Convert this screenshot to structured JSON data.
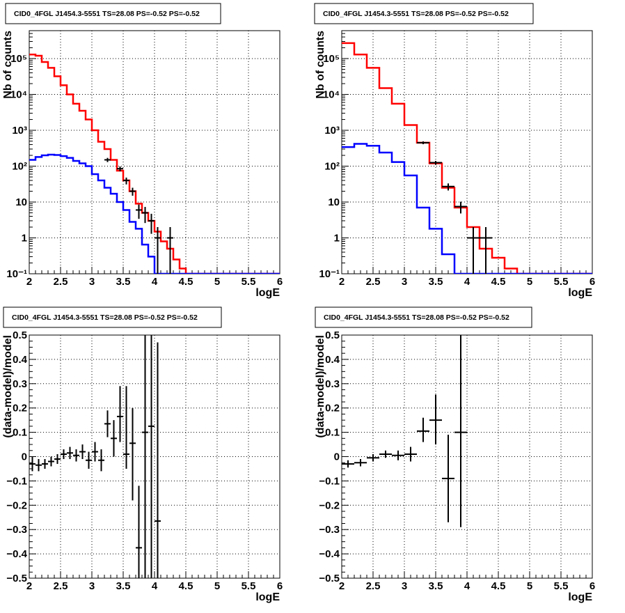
{
  "colors": {
    "model_total": "#ff0000",
    "model_source": "#0000ff",
    "data": "#000000",
    "grid": "#000000",
    "background": "#ffffff"
  },
  "chart_data": [
    {
      "type": "line",
      "title": "CID0_4FGL J1454.3-5551 TS=28.08 PS=-0.52 PS=-0.52",
      "xlabel": "logE",
      "ylabel": "Nb of counts",
      "xlim": [
        2,
        6
      ],
      "ylim": [
        0.1,
        600000
      ],
      "y_scale": "log",
      "grid": true,
      "x_ticks": [
        2,
        2.5,
        3,
        3.5,
        4,
        4.5,
        5,
        5.5,
        6
      ],
      "x_tick_labels": [
        "2",
        "2.5",
        "3",
        "3.5",
        "4",
        "4.5",
        "5",
        "5.5",
        "6"
      ],
      "y_ticks": [
        0.1,
        1,
        10,
        100,
        1000,
        10000,
        100000
      ],
      "y_tick_labels": [
        "10⁻¹",
        "1",
        "10",
        "10²",
        "10³",
        "10⁴",
        "10⁵"
      ],
      "bin_edges": [
        2,
        2.1,
        2.2,
        2.3,
        2.4,
        2.5,
        2.6,
        2.7,
        2.8,
        2.9,
        3,
        3.1,
        3.2,
        3.3,
        3.4,
        3.5,
        3.6,
        3.7,
        3.8,
        3.9,
        4,
        4.1,
        4.2,
        4.3,
        4.4,
        4.5,
        4.6,
        4.7,
        4.8,
        4.9,
        5,
        5.1,
        5.2,
        5.3,
        5.4,
        5.5,
        5.6,
        5.7,
        5.8,
        5.9,
        6
      ],
      "series": [
        {
          "values": [
            130000,
            120000,
            80000,
            55000,
            32000,
            18000,
            10000,
            5500,
            3500,
            2000,
            1000,
            480,
            300,
            150,
            75,
            40,
            20,
            9,
            5,
            3,
            1.5,
            0.8,
            0.5,
            0.25,
            0.14,
            0.1,
            0.1,
            0.1,
            0.1,
            0.1,
            0.1,
            0.1,
            0.1,
            0.1,
            0.1,
            0.1,
            0.1,
            0.1,
            0.1,
            0.1
          ]
        },
        {
          "values": [
            150,
            180,
            200,
            210,
            205,
            190,
            170,
            140,
            120,
            100,
            60,
            40,
            25,
            17,
            10,
            6,
            2.8,
            1.8,
            0.65,
            0.3,
            0.1,
            0.1,
            0.1,
            0.1,
            0.1,
            0.1,
            0.1,
            0.1,
            0.1,
            0.1,
            0.1,
            0.1,
            0.1,
            0.1,
            0.1,
            0.1,
            0.1,
            0.1,
            0.1,
            0.1
          ]
        },
        {
          "points": [
            {
              "x": 3.25,
              "y": 150,
              "xerr": 0.05,
              "ylo": 130,
              "yhi": 170
            },
            {
              "x": 3.45,
              "y": 85,
              "xerr": 0.05,
              "ylo": 72,
              "yhi": 98
            },
            {
              "x": 3.55,
              "y": 40,
              "xerr": 0.05,
              "ylo": 31,
              "yhi": 48
            },
            {
              "x": 3.65,
              "y": 20,
              "xerr": 0.05,
              "ylo": 15,
              "yhi": 25
            },
            {
              "x": 3.75,
              "y": 6,
              "xerr": 0.05,
              "ylo": 3.4,
              "yhi": 8.5
            },
            {
              "x": 3.85,
              "y": 5,
              "xerr": 0.05,
              "ylo": 2.6,
              "yhi": 7.3
            },
            {
              "x": 3.95,
              "y": 3,
              "xerr": 0.05,
              "ylo": 1.3,
              "yhi": 4.7
            },
            {
              "x": 4.05,
              "y": 1,
              "xerr": 0.05,
              "ylo": 0.1,
              "yhi": 2
            },
            {
              "x": 4.25,
              "y": 1,
              "xerr": 0.05,
              "ylo": 0.1,
              "yhi": 2
            }
          ]
        }
      ]
    },
    {
      "type": "line",
      "title": "CID0_4FGL J1454.3-5551 TS=28.08 PS=-0.52 PS=-0.52",
      "xlabel": "logE",
      "ylabel": "Nb of counts",
      "xlim": [
        2,
        6
      ],
      "ylim": [
        0.1,
        600000
      ],
      "y_scale": "log",
      "grid": true,
      "x_ticks": [
        2,
        2.5,
        3,
        3.5,
        4,
        4.5,
        5,
        5.5,
        6
      ],
      "x_tick_labels": [
        "2",
        "2.5",
        "3",
        "3.5",
        "4",
        "4.5",
        "5",
        "5.5",
        "6"
      ],
      "y_ticks": [
        0.1,
        1,
        10,
        100,
        1000,
        10000,
        100000
      ],
      "y_tick_labels": [
        "10⁻¹",
        "1",
        "10",
        "10²",
        "10³",
        "10⁴",
        "10⁵"
      ],
      "bin_edges": [
        2,
        2.2,
        2.4,
        2.6,
        2.8,
        3,
        3.2,
        3.4,
        3.6,
        3.8,
        4,
        4.2,
        4.4,
        4.6,
        4.8,
        5,
        5.2,
        5.4,
        5.6,
        5.8,
        6
      ],
      "series": [
        {
          "values": [
            270000,
            130000,
            55000,
            15000,
            5500,
            1400,
            450,
            120,
            25,
            7,
            2,
            0.5,
            0.28,
            0.14,
            0.1,
            0.1,
            0.1,
            0.1,
            0.1,
            0.1
          ]
        },
        {
          "values": [
            340,
            420,
            370,
            240,
            130,
            55,
            7,
            1.8,
            0.35,
            0.1,
            0.1,
            0.1,
            0.1,
            0.1,
            0.1,
            0.1,
            0.1,
            0.1,
            0.1,
            0.1
          ]
        },
        {
          "points": [
            {
              "x": 3.3,
              "y": 450,
              "xerr": 0.1,
              "ylo": 410,
              "yhi": 490
            },
            {
              "x": 3.5,
              "y": 125,
              "xerr": 0.1,
              "ylo": 110,
              "yhi": 140
            },
            {
              "x": 3.7,
              "y": 27,
              "xerr": 0.1,
              "ylo": 21,
              "yhi": 33
            },
            {
              "x": 3.9,
              "y": 7.5,
              "xerr": 0.1,
              "ylo": 4.8,
              "yhi": 10.2
            },
            {
              "x": 4.1,
              "y": 1,
              "xerr": 0.1,
              "ylo": 0.1,
              "yhi": 2
            },
            {
              "x": 4.3,
              "y": 1,
              "xerr": 0.1,
              "ylo": 0.1,
              "yhi": 2
            }
          ]
        }
      ]
    },
    {
      "type": "scatter",
      "title": "CID0_4FGL J1454.3-5551 TS=28.08 PS=-0.52 PS=-0.52",
      "xlabel": "logE",
      "ylabel": "(data-model)/model",
      "xlim": [
        2,
        6
      ],
      "ylim": [
        -0.5,
        0.5
      ],
      "y_scale": "linear",
      "grid": true,
      "x_ticks": [
        2,
        2.5,
        3,
        3.5,
        4,
        4.5,
        5,
        5.5,
        6
      ],
      "x_tick_labels": [
        "2",
        "2.5",
        "3",
        "3.5",
        "4",
        "4.5",
        "5",
        "5.5",
        "6"
      ],
      "y_ticks": [
        -0.5,
        -0.4,
        -0.3,
        -0.2,
        -0.1,
        0,
        0.1,
        0.2,
        0.3,
        0.4,
        0.5
      ],
      "y_tick_labels": [
        "−0.5",
        "−0.4",
        "−0.3",
        "−0.2",
        "−0.1",
        "0",
        "0.1",
        "0.2",
        "0.3",
        "0.4",
        "0.5"
      ],
      "series": [
        {
          "points": [
            {
              "x": 2.05,
              "y": -0.03,
              "xerr": 0.05,
              "ylo": -0.06,
              "yhi": 0.0
            },
            {
              "x": 2.15,
              "y": -0.035,
              "xerr": 0.05,
              "ylo": -0.06,
              "yhi": -0.01
            },
            {
              "x": 2.25,
              "y": -0.03,
              "xerr": 0.05,
              "ylo": -0.05,
              "yhi": -0.01
            },
            {
              "x": 2.35,
              "y": -0.02,
              "xerr": 0.05,
              "ylo": -0.04,
              "yhi": 0.0
            },
            {
              "x": 2.45,
              "y": -0.01,
              "xerr": 0.05,
              "ylo": -0.03,
              "yhi": 0.01
            },
            {
              "x": 2.55,
              "y": 0.01,
              "xerr": 0.05,
              "ylo": -0.01,
              "yhi": 0.03
            },
            {
              "x": 2.65,
              "y": 0.015,
              "xerr": 0.05,
              "ylo": -0.01,
              "yhi": 0.04
            },
            {
              "x": 2.75,
              "y": 0.005,
              "xerr": 0.05,
              "ylo": -0.02,
              "yhi": 0.03
            },
            {
              "x": 2.85,
              "y": 0.02,
              "xerr": 0.05,
              "ylo": -0.01,
              "yhi": 0.05
            },
            {
              "x": 2.95,
              "y": -0.015,
              "xerr": 0.05,
              "ylo": -0.05,
              "yhi": 0.02
            },
            {
              "x": 3.05,
              "y": 0.02,
              "xerr": 0.05,
              "ylo": -0.02,
              "yhi": 0.06
            },
            {
              "x": 3.15,
              "y": -0.015,
              "xerr": 0.05,
              "ylo": -0.06,
              "yhi": 0.03
            },
            {
              "x": 3.25,
              "y": 0.135,
              "xerr": 0.05,
              "ylo": 0.08,
              "yhi": 0.19
            },
            {
              "x": 3.35,
              "y": 0.075,
              "xerr": 0.05,
              "ylo": 0.0,
              "yhi": 0.15
            },
            {
              "x": 3.45,
              "y": 0.165,
              "xerr": 0.05,
              "ylo": 0.06,
              "yhi": 0.29
            },
            {
              "x": 3.55,
              "y": 0.01,
              "xerr": 0.05,
              "ylo": -0.05,
              "yhi": 0.29
            },
            {
              "x": 3.65,
              "y": 0.055,
              "xerr": 0.05,
              "ylo": -0.18,
              "yhi": 0.2
            },
            {
              "x": 3.75,
              "y": -0.375,
              "xerr": 0.05,
              "ylo": -0.5,
              "yhi": -0.12
            },
            {
              "x": 3.85,
              "y": 0.1,
              "xerr": 0.05,
              "ylo": -0.5,
              "yhi": 0.5
            },
            {
              "x": 3.95,
              "y": 0.125,
              "xerr": 0.05,
              "ylo": -0.5,
              "yhi": 0.5
            },
            {
              "x": 4.05,
              "y": -0.265,
              "xerr": 0.05,
              "ylo": -0.5,
              "yhi": 0.47
            }
          ]
        }
      ]
    },
    {
      "type": "scatter",
      "title": "CID0_4FGL J1454.3-5551 TS=28.08 PS=-0.52 PS=-0.52",
      "xlabel": "logE",
      "ylabel": "(data-model)/model",
      "xlim": [
        2,
        6
      ],
      "ylim": [
        -0.5,
        0.5
      ],
      "y_scale": "linear",
      "grid": true,
      "x_ticks": [
        2,
        2.5,
        3,
        3.5,
        4,
        4.5,
        5,
        5.5,
        6
      ],
      "x_tick_labels": [
        "2",
        "2.5",
        "3",
        "3.5",
        "4",
        "4.5",
        "5",
        "5.5",
        "6"
      ],
      "y_ticks": [
        -0.5,
        -0.4,
        -0.3,
        -0.2,
        -0.1,
        0,
        0.1,
        0.2,
        0.3,
        0.4,
        0.5
      ],
      "y_tick_labels": [
        "−0.5",
        "−0.4",
        "−0.3",
        "−0.2",
        "−0.1",
        "0",
        "0.1",
        "0.2",
        "0.3",
        "0.4",
        "0.5"
      ],
      "series": [
        {
          "points": [
            {
              "x": 2.1,
              "y": -0.03,
              "xerr": 0.1,
              "ylo": -0.045,
              "yhi": -0.015
            },
            {
              "x": 2.3,
              "y": -0.025,
              "xerr": 0.1,
              "ylo": -0.04,
              "yhi": -0.01
            },
            {
              "x": 2.5,
              "y": -0.005,
              "xerr": 0.1,
              "ylo": -0.02,
              "yhi": 0.01
            },
            {
              "x": 2.7,
              "y": 0.01,
              "xerr": 0.1,
              "ylo": -0.005,
              "yhi": 0.025
            },
            {
              "x": 2.9,
              "y": 0.005,
              "xerr": 0.1,
              "ylo": -0.015,
              "yhi": 0.025
            },
            {
              "x": 3.1,
              "y": 0.01,
              "xerr": 0.1,
              "ylo": -0.02,
              "yhi": 0.04
            },
            {
              "x": 3.3,
              "y": 0.105,
              "xerr": 0.1,
              "ylo": 0.06,
              "yhi": 0.16
            },
            {
              "x": 3.5,
              "y": 0.15,
              "xerr": 0.1,
              "ylo": 0.05,
              "yhi": 0.255
            },
            {
              "x": 3.7,
              "y": -0.09,
              "xerr": 0.1,
              "ylo": -0.27,
              "yhi": 0.09
            },
            {
              "x": 3.9,
              "y": 0.1,
              "xerr": 0.1,
              "ylo": -0.29,
              "yhi": 0.5
            }
          ]
        }
      ]
    }
  ]
}
